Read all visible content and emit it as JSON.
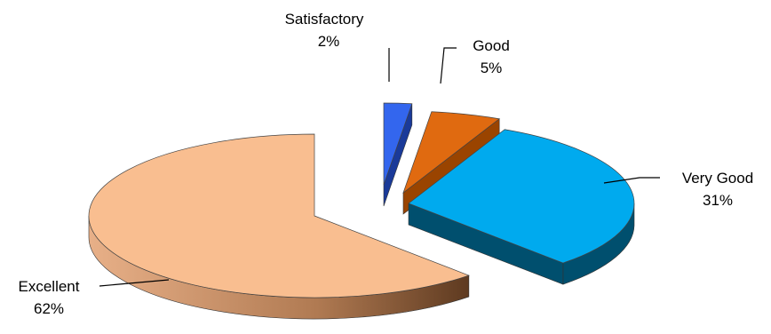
{
  "chart_data": {
    "type": "pie",
    "style": "3d-exploded",
    "title": "",
    "slices": [
      {
        "label": "Satisfactory",
        "percent_label": "2%",
        "value": 2,
        "color": "#3366ee",
        "side_color": "#1a3a99"
      },
      {
        "label": "Good",
        "percent_label": "5%",
        "value": 5,
        "color": "#e06a10",
        "side_color": "#9a4400"
      },
      {
        "label": "Very Good",
        "percent_label": "31%",
        "value": 31,
        "color": "#00aaee",
        "side_color": "#004f6e"
      },
      {
        "label": "Excellent",
        "percent_label": "62%",
        "value": 62,
        "color": "#f9be90",
        "side_color": "#a06c44"
      }
    ],
    "legend": "none",
    "data_labels": "outside-with-leader-lines"
  }
}
